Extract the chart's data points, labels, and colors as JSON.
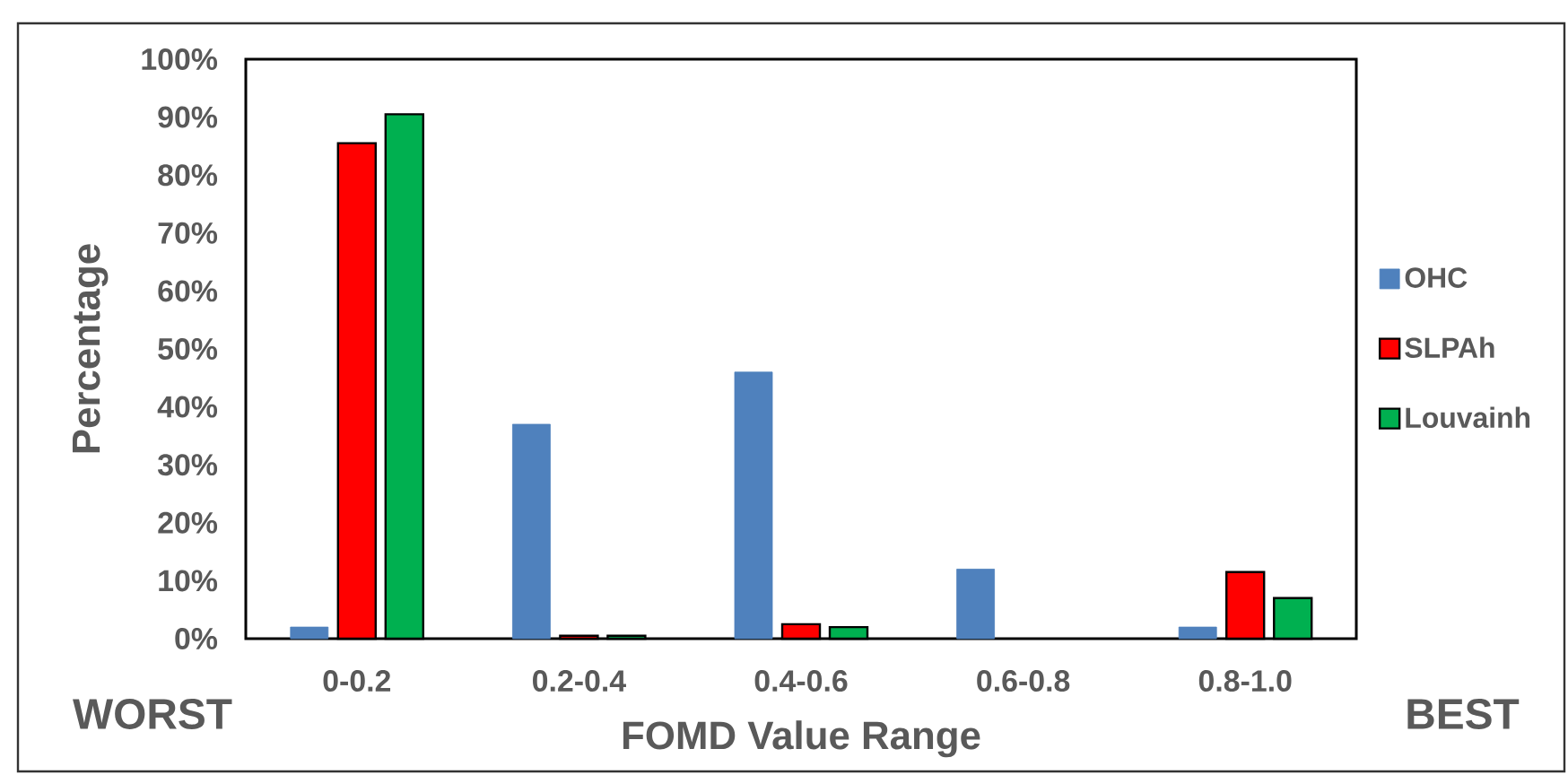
{
  "chart_data": {
    "type": "bar",
    "categories": [
      "0-0.2",
      "0.2-0.4",
      "0.4-0.6",
      "0.6-0.8",
      "0.8-1.0"
    ],
    "xlabel": "FOMD Value Range",
    "ylabel": "Percentage",
    "series": [
      {
        "name": "OHC",
        "color": "#4f81bd",
        "values": [
          2,
          37,
          46,
          12,
          2
        ]
      },
      {
        "name": "SLPAh",
        "color": "#ff0000",
        "values": [
          85.5,
          0.5,
          2.5,
          null,
          11.5
        ]
      },
      {
        "name": "Louvainh",
        "color": "#00b050",
        "values": [
          90.5,
          0.5,
          2,
          null,
          7
        ]
      }
    ],
    "ylim": [
      0,
      100
    ],
    "yticks": [
      {
        "value": 0,
        "label": "0%"
      },
      {
        "value": 10,
        "label": "10%"
      },
      {
        "value": 20,
        "label": "20%"
      },
      {
        "value": 30,
        "label": "30%"
      },
      {
        "value": 40,
        "label": "40%"
      },
      {
        "value": 50,
        "label": "50%"
      },
      {
        "value": 60,
        "label": "60%"
      },
      {
        "value": 70,
        "label": "70%"
      },
      {
        "value": 80,
        "label": "80%"
      },
      {
        "value": 90,
        "label": "90%"
      },
      {
        "value": 100,
        "label": "100%"
      }
    ],
    "annotations": [
      "WORST",
      "BEST"
    ],
    "legend": "right"
  }
}
